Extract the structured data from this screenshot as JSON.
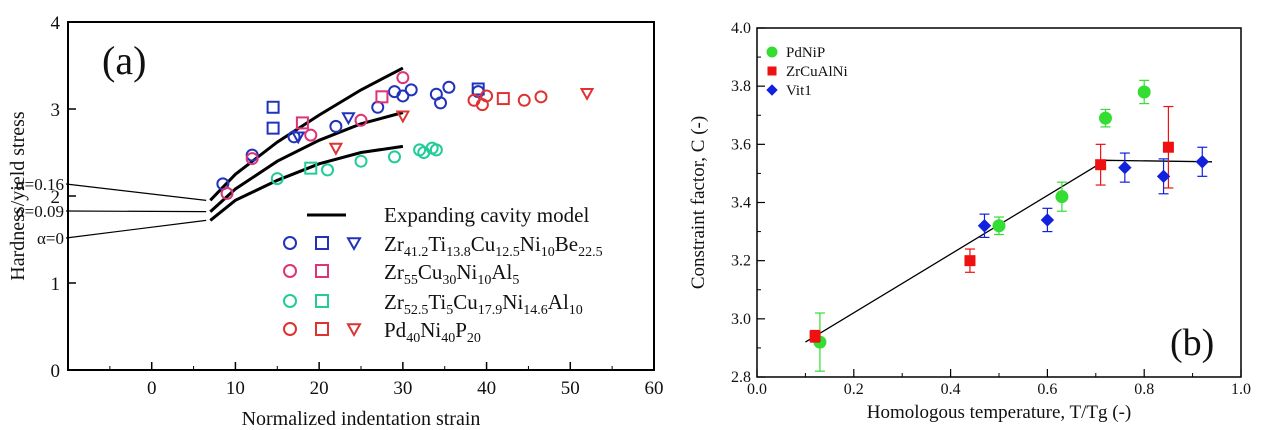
{
  "chart_data": [
    {
      "type": "scatter",
      "panel_label": "(a)",
      "xlabel": "Normalized indentation strain",
      "ylabel": "Hardness/yield stress",
      "xlim": [
        -10,
        60
      ],
      "ylim": [
        0,
        4
      ],
      "xticks": [
        "0",
        "10",
        "20",
        "30",
        "40",
        "50",
        "60"
      ],
      "yticks": [
        "0",
        "1",
        "2",
        "3",
        "4"
      ],
      "model_label": "Expanding cavity model",
      "alpha_labels": [
        "α=0.16",
        "α=0.09",
        "α=0"
      ],
      "model_curves": [
        {
          "alpha": "0.16",
          "color": "#000000",
          "points": [
            [
              7,
              1.95
            ],
            [
              10,
              2.25
            ],
            [
              15,
              2.62
            ],
            [
              20,
              2.93
            ],
            [
              25,
              3.22
            ],
            [
              30,
              3.47
            ]
          ]
        },
        {
          "alpha": "0.09",
          "color": "#000000",
          "points": [
            [
              7,
              1.82
            ],
            [
              10,
              2.08
            ],
            [
              15,
              2.4
            ],
            [
              20,
              2.64
            ],
            [
              25,
              2.83
            ],
            [
              30,
              2.96
            ]
          ]
        },
        {
          "alpha": "0",
          "color": "#000000",
          "points": [
            [
              7,
              1.72
            ],
            [
              10,
              1.95
            ],
            [
              15,
              2.18
            ],
            [
              20,
              2.37
            ],
            [
              25,
              2.5
            ],
            [
              30,
              2.57
            ]
          ]
        }
      ],
      "series": [
        {
          "name": "Zr41.2Ti13.8Cu12.5Ni10Be22.5",
          "color": "#2233bb",
          "markers": {
            "circle": [
              [
                8.5,
                2.14
              ],
              [
                12,
                2.47
              ],
              [
                17,
                2.68
              ],
              [
                22,
                2.8
              ],
              [
                27,
                3.02
              ],
              [
                29,
                3.2
              ],
              [
                30,
                3.15
              ],
              [
                31,
                3.22
              ],
              [
                34,
                3.17
              ],
              [
                34.5,
                3.07
              ],
              [
                35.5,
                3.25
              ],
              [
                39,
                3.2
              ]
            ],
            "square": [
              [
                14.5,
                3.02
              ],
              [
                14.5,
                2.78
              ],
              [
                39,
                3.23
              ]
            ],
            "triangle": [
              [
                17.5,
                2.68
              ],
              [
                23.5,
                2.9
              ]
            ]
          }
        },
        {
          "name": "Zr55Cu30Ni10Al5",
          "color": "#dd3377",
          "markers": {
            "circle": [
              [
                9,
                2.03
              ],
              [
                12,
                2.43
              ],
              [
                19,
                2.7
              ],
              [
                25,
                2.87
              ],
              [
                30,
                3.36
              ]
            ],
            "square": [
              [
                18,
                2.84
              ],
              [
                27.5,
                3.14
              ]
            ],
            "triangle": []
          }
        },
        {
          "name": "Zr52.5Ti5Cu17.9Ni14.6Al10",
          "color": "#22cc99",
          "markers": {
            "circle": [
              [
                15,
                2.2
              ],
              [
                21,
                2.3
              ],
              [
                25,
                2.4
              ],
              [
                29,
                2.45
              ],
              [
                32,
                2.53
              ],
              [
                32.5,
                2.5
              ],
              [
                33.5,
                2.55
              ],
              [
                34,
                2.53
              ]
            ],
            "square": [
              [
                19,
                2.32
              ]
            ],
            "triangle": []
          }
        },
        {
          "name": "Pd40Ni40P20",
          "color": "#dd3333",
          "markers": {
            "circle": [
              [
                38.5,
                3.1
              ],
              [
                39.5,
                3.05
              ],
              [
                40,
                3.15
              ],
              [
                44.5,
                3.1
              ],
              [
                46.5,
                3.14
              ]
            ],
            "square": [
              [
                42,
                3.12
              ]
            ],
            "triangle": [
              [
                22,
                2.55
              ],
              [
                30,
                2.92
              ],
              [
                52,
                3.18
              ]
            ]
          }
        }
      ],
      "legend": [
        {
          "parts": [
            [
              "Zr",
              ""
            ],
            [
              "41.2",
              "sub"
            ],
            [
              "Ti",
              ""
            ],
            [
              "13.8",
              "sub"
            ],
            [
              "Cu",
              ""
            ],
            [
              "12.5",
              "sub"
            ],
            [
              "Ni",
              ""
            ],
            [
              "10",
              "sub"
            ],
            [
              "Be",
              ""
            ],
            [
              "22.5",
              "sub"
            ]
          ],
          "markers": [
            "circle",
            "square",
            "triangle"
          ]
        },
        {
          "parts": [
            [
              "Zr",
              ""
            ],
            [
              "55",
              "sub"
            ],
            [
              "Cu",
              ""
            ],
            [
              "30",
              "sub"
            ],
            [
              "Ni",
              ""
            ],
            [
              "10",
              "sub"
            ],
            [
              "Al",
              ""
            ],
            [
              "5",
              "sub"
            ]
          ],
          "markers": [
            "circle",
            "square"
          ]
        },
        {
          "parts": [
            [
              "Zr",
              ""
            ],
            [
              "52.5",
              "sub"
            ],
            [
              "Ti",
              ""
            ],
            [
              "5",
              "sub"
            ],
            [
              "Cu",
              ""
            ],
            [
              "17.9",
              "sub"
            ],
            [
              "Ni",
              ""
            ],
            [
              "14.6",
              "sub"
            ],
            [
              "Al",
              ""
            ],
            [
              "10",
              "sub"
            ]
          ],
          "markers": [
            "circle",
            "square"
          ]
        },
        {
          "parts": [
            [
              "Pd",
              ""
            ],
            [
              "40",
              "sub"
            ],
            [
              "Ni",
              ""
            ],
            [
              "40",
              "sub"
            ],
            [
              "P",
              ""
            ],
            [
              "20",
              "sub"
            ]
          ],
          "markers": [
            "circle",
            "square",
            "triangle"
          ]
        }
      ]
    },
    {
      "type": "scatter",
      "panel_label": "(b)",
      "xlabel": "Homologous temperature, T/Tg (-)",
      "ylabel": "Constraint factor, C (-)",
      "xlim": [
        0,
        1
      ],
      "ylim": [
        2.8,
        4.0
      ],
      "xticks": [
        "0.0",
        "0.2",
        "0.4",
        "0.6",
        "0.8",
        "1.0"
      ],
      "yticks": [
        "2.8",
        "3.0",
        "3.2",
        "3.4",
        "3.6",
        "3.8",
        "4.0"
      ],
      "fit_line": [
        [
          0.1,
          2.92
        ],
        [
          0.72,
          3.545
        ],
        [
          0.94,
          3.54
        ]
      ],
      "series": [
        {
          "name": "PdNiP",
          "color": "#33dd33",
          "marker": "circle",
          "points": [
            [
              0.13,
              2.92,
              0.1
            ],
            [
              0.5,
              3.32,
              0.03
            ],
            [
              0.63,
              3.42,
              0.05
            ],
            [
              0.72,
              3.69,
              0.03
            ],
            [
              0.8,
              3.78,
              0.04
            ]
          ]
        },
        {
          "name": "ZrCuAlNi",
          "color": "#ee1111",
          "marker": "square",
          "points": [
            [
              0.12,
              2.94,
              0.02
            ],
            [
              0.44,
              3.2,
              0.04
            ],
            [
              0.71,
              3.53,
              0.07
            ],
            [
              0.85,
              3.59,
              0.14
            ]
          ]
        },
        {
          "name": "Vit1",
          "color": "#1122dd",
          "marker": "diamond",
          "points": [
            [
              0.47,
              3.32,
              0.04
            ],
            [
              0.6,
              3.34,
              0.04
            ],
            [
              0.76,
              3.52,
              0.05
            ],
            [
              0.84,
              3.49,
              0.06
            ],
            [
              0.92,
              3.54,
              0.05
            ]
          ]
        }
      ]
    }
  ]
}
